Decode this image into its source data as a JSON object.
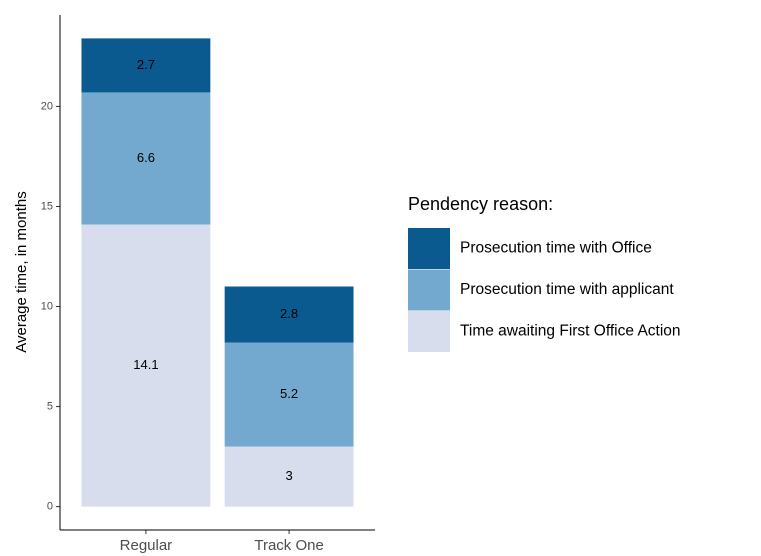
{
  "chart_data": {
    "type": "stacked_bar",
    "categories": [
      "Regular",
      "Track One"
    ],
    "y_label": "Average time, in months",
    "legend_title": "Pendency reason:",
    "series": [
      {
        "name": "Time awaiting First Office Action",
        "color": "#d8dded",
        "values": [
          14.1,
          3
        ]
      },
      {
        "name": "Prosecution time with applicant",
        "color": "#74a9cf",
        "values": [
          6.6,
          5.2
        ]
      },
      {
        "name": "Prosecution time with Office",
        "color": "#0a5a8f",
        "values": [
          2.7,
          2.8
        ]
      }
    ],
    "ylim": [
      -1.17,
      24.57
    ],
    "yticks": [
      0,
      5,
      10,
      15,
      20
    ],
    "legend": "right"
  }
}
